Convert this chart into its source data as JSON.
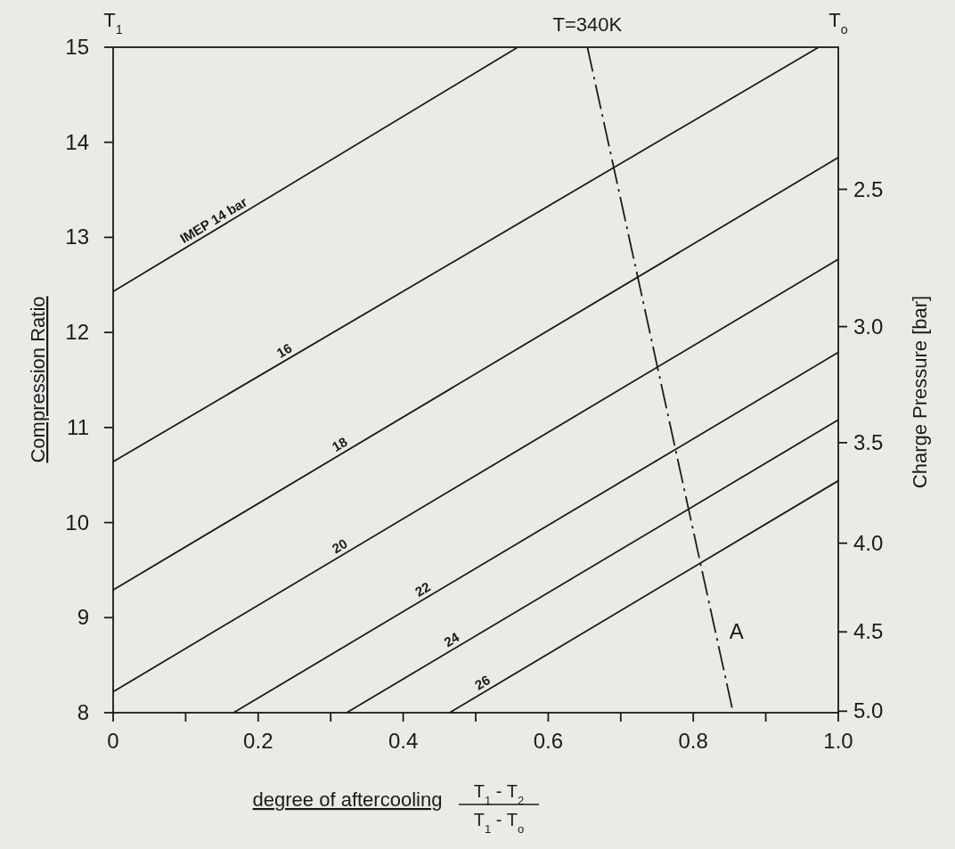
{
  "chart_data": {
    "type": "line",
    "xlabel": "degree of aftercooling",
    "ylabel": "Compression Ratio",
    "y2label": "Charge Pressure [bar]",
    "annotations": [
      "T$_{1}$",
      "T$_{o}$",
      "T$_{1}$ - T$_{2}$",
      "T$_{1}$ - T$_{o}$",
      "A"
    ],
    "xlim": [
      0,
      1
    ],
    "xticks": [
      {
        "value": 0,
        "label": "0"
      },
      {
        "value": 0.1,
        "label": null
      },
      {
        "value": 0.2,
        "label": "0.2"
      },
      {
        "value": 0.3,
        "label": null
      },
      {
        "value": 0.4,
        "label": "0.4"
      },
      {
        "value": 0.5,
        "label": null
      },
      {
        "value": 0.6,
        "label": "0.6"
      },
      {
        "value": 0.7,
        "label": null
      },
      {
        "value": 0.8,
        "label": "0.8"
      },
      {
        "value": 0.9,
        "label": null
      },
      {
        "value": 1,
        "label": "1.0"
      }
    ],
    "ylim": [
      8,
      15
    ],
    "yticks": [
      8,
      9,
      10,
      11,
      12,
      13,
      14,
      15
    ],
    "log": "y2",
    "y2lim": [
      5.01,
      2.07
    ],
    "y2ticks": [
      {
        "value": 2.5,
        "label": "2.5"
      },
      {
        "value": 3,
        "label": "3.0"
      },
      {
        "value": 3.5,
        "label": "3.5"
      },
      {
        "value": 4,
        "label": "4.0"
      },
      {
        "value": 4.5,
        "label": "4.5"
      },
      {
        "value": 5,
        "label": "5.0"
      }
    ],
    "grid": false,
    "marker": "none",
    "series": [
      {
        "name": "IMEP 14 bar",
        "color": "#1a1a1a",
        "x": [
          0,
          0.558
        ],
        "values": [
          12.43,
          15
        ]
      },
      {
        "name": "16",
        "color": "#1a1a1a",
        "x": [
          0,
          0.973
        ],
        "values": [
          10.64,
          15
        ]
      },
      {
        "name": "18",
        "color": "#1a1a1a",
        "x": [
          0,
          1
        ],
        "values": [
          9.29,
          13.84
        ]
      },
      {
        "name": "20",
        "color": "#1a1a1a",
        "x": [
          0,
          1
        ],
        "values": [
          8.22,
          12.77
        ]
      },
      {
        "name": "22",
        "color": "#1a1a1a",
        "x": [
          0.166,
          1
        ],
        "values": [
          8,
          11.79
        ]
      },
      {
        "name": "24",
        "color": "#1a1a1a",
        "x": [
          0.322,
          1
        ],
        "values": [
          8,
          11.08
        ]
      },
      {
        "name": "26",
        "color": "#1a1a1a",
        "x": [
          0.464,
          1
        ],
        "values": [
          8,
          10.44
        ]
      },
      {
        "name": "T=340K",
        "color": "#1a1a1a",
        "x": [
          0.654,
          0.855
        ],
        "values": [
          15,
          8
        ],
        "line_style": "dashed"
      }
    ]
  }
}
